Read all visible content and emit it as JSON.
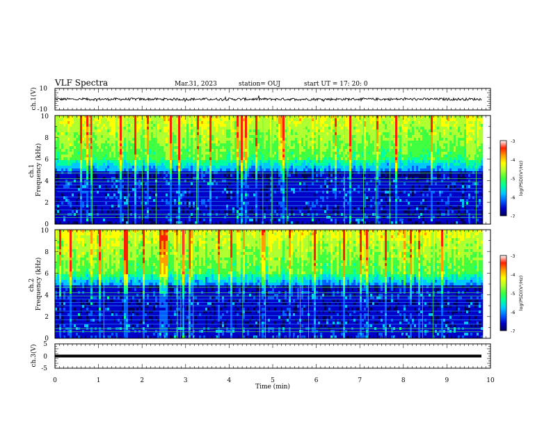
{
  "header": {
    "title": "VLF Spectra",
    "date": "Mar.31, 2023",
    "station": "station= OUJ",
    "start": "start UT =  17: 20: 0"
  },
  "colors": {
    "palette": [
      "#00005a",
      "#0000c8",
      "#0060ff",
      "#00c8ff",
      "#00ffa0",
      "#40ff40",
      "#b0ff30",
      "#ffff00",
      "#ffa000",
      "#ff2000",
      "#ffffff"
    ],
    "grid_line": "#50ff50",
    "waveform": "#000000"
  },
  "chart_data": [
    {
      "type": "line",
      "name": "ch1-waveform",
      "ylabel": "ch.1(V)",
      "ylim": [
        -10,
        10
      ],
      "yticks": [
        "10",
        "-10"
      ],
      "xlim": [
        0,
        10
      ],
      "baseline": 0,
      "noise_amplitude": 1.2
    },
    {
      "type": "heatmap",
      "name": "ch1-spectrogram",
      "ylabel": "ch.1\nFrequency  (kHz)",
      "ylim": [
        0,
        10
      ],
      "yticks": [
        "0",
        "2",
        "4",
        "6",
        "8",
        "10"
      ],
      "xlim": [
        0,
        10
      ],
      "data_end_min": 9.8,
      "colorbar": {
        "label": "log(PSD)(V²/Hz)",
        "range": [
          -7,
          -3
        ],
        "ticks": [
          "-3",
          "-4",
          "-5",
          "-6",
          "-7"
        ]
      }
    },
    {
      "type": "heatmap",
      "name": "ch2-spectrogram",
      "ylabel": "ch.2\nFrequency  (kHz)",
      "ylim": [
        0,
        10
      ],
      "yticks": [
        "0",
        "2",
        "4",
        "6",
        "8",
        "10"
      ],
      "xlim": [
        0,
        10
      ],
      "data_end_min": 9.8,
      "colorbar": {
        "label": "log(PSD)(V²/Hz)",
        "range": [
          -7,
          -3
        ],
        "ticks": [
          "-3",
          "-4",
          "-5",
          "-6",
          "-7"
        ]
      }
    },
    {
      "type": "line",
      "name": "ch3-waveform",
      "ylabel": "ch.3(V)",
      "ylim": [
        -5,
        5
      ],
      "yticks": [
        "5",
        "0",
        "-5"
      ],
      "xlim": [
        0,
        10
      ],
      "baseline": 0,
      "noise_amplitude": 0
    }
  ],
  "xaxis": {
    "label": "Time  (min)",
    "ticks": [
      "0",
      "1",
      "2",
      "3",
      "4",
      "5",
      "6",
      "7",
      "8",
      "9",
      "10"
    ]
  }
}
